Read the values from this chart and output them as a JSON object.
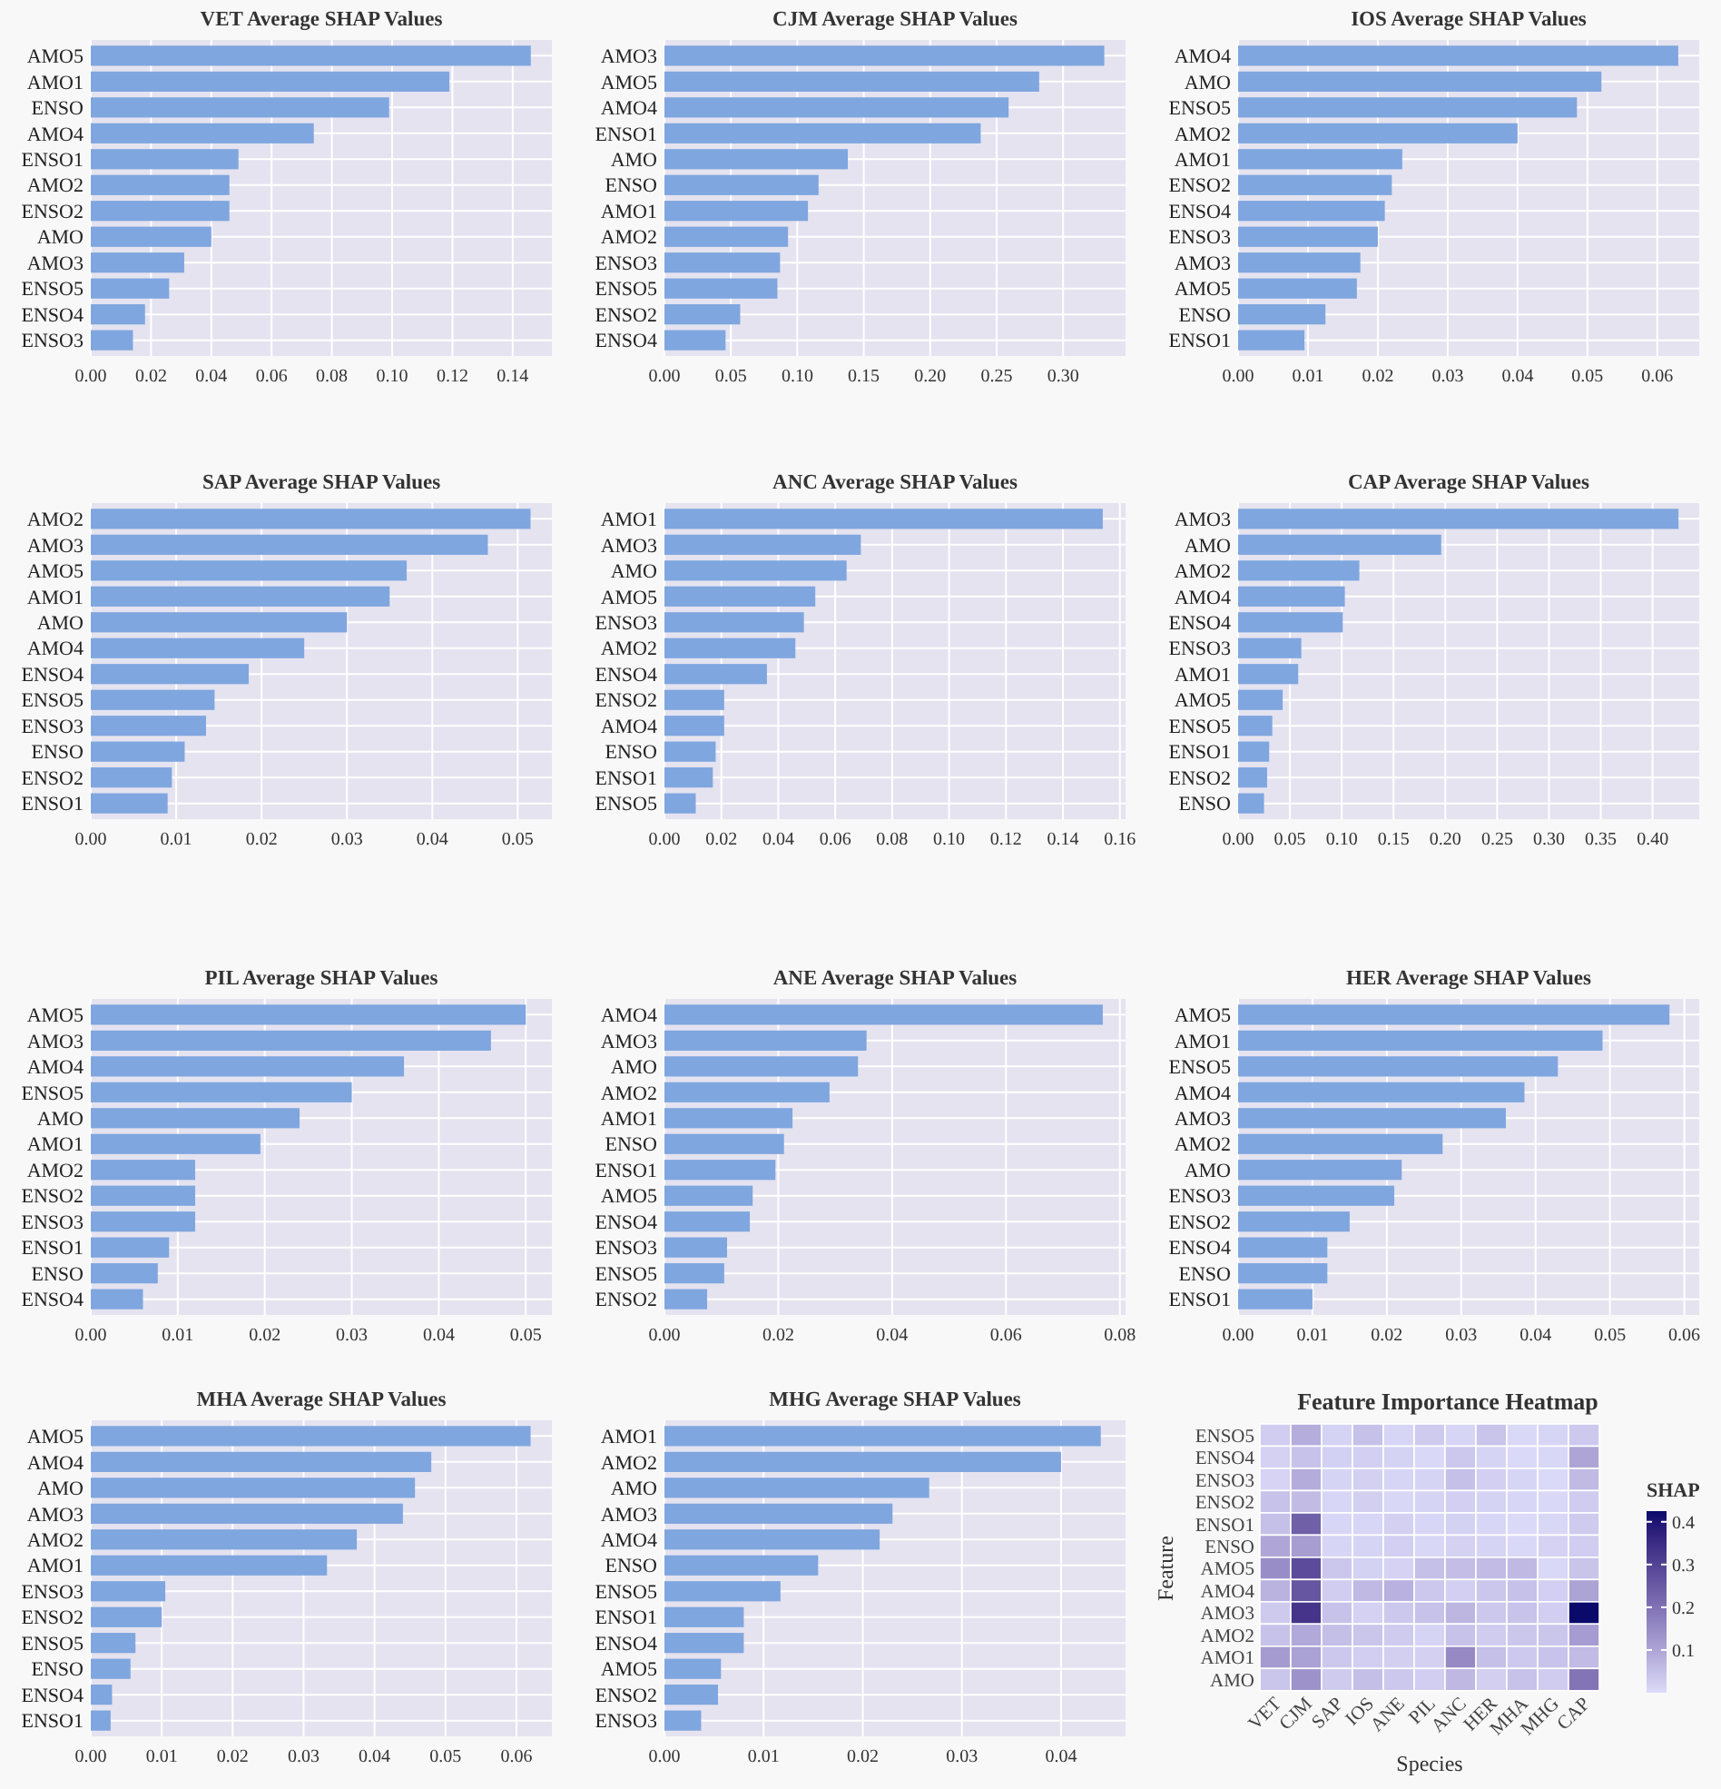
{
  "chart_data": [
    {
      "type": "bar",
      "orientation": "horizontal",
      "title": "VET Average SHAP Values",
      "grid": true,
      "color": "#7fa6df",
      "categories": [
        "AMO5",
        "AMO1",
        "ENSO",
        "AMO4",
        "ENSO1",
        "AMO2",
        "ENSO2",
        "AMO",
        "AMO3",
        "ENSO5",
        "ENSO4",
        "ENSO3"
      ],
      "values": [
        0.146,
        0.119,
        0.099,
        0.074,
        0.049,
        0.046,
        0.046,
        0.04,
        0.031,
        0.026,
        0.018,
        0.014
      ],
      "xlim": [
        0,
        0.153
      ],
      "xticks": [
        {
          "value": 0,
          "label": "0.00"
        },
        {
          "value": 0.02,
          "label": "0.02"
        },
        {
          "value": 0.04,
          "label": "0.04"
        },
        {
          "value": 0.06,
          "label": "0.06"
        },
        {
          "value": 0.08,
          "label": "0.08"
        },
        {
          "value": 0.1,
          "label": "0.10"
        },
        {
          "value": 0.12,
          "label": "0.12"
        },
        {
          "value": 0.14,
          "label": "0.14"
        }
      ]
    },
    {
      "type": "bar",
      "orientation": "horizontal",
      "title": "CJM Average SHAP Values",
      "grid": true,
      "color": "#7fa6df",
      "categories": [
        "AMO3",
        "AMO5",
        "AMO4",
        "ENSO1",
        "AMO",
        "ENSO",
        "AMO1",
        "AMO2",
        "ENSO3",
        "ENSO5",
        "ENSO2",
        "ENSO4"
      ],
      "values": [
        0.331,
        0.282,
        0.259,
        0.238,
        0.138,
        0.116,
        0.108,
        0.093,
        0.087,
        0.085,
        0.057,
        0.046
      ],
      "xlim": [
        0,
        0.347
      ],
      "xticks": [
        {
          "value": 0,
          "label": "0.00"
        },
        {
          "value": 0.05,
          "label": "0.05"
        },
        {
          "value": 0.1,
          "label": "0.10"
        },
        {
          "value": 0.15,
          "label": "0.15"
        },
        {
          "value": 0.2,
          "label": "0.20"
        },
        {
          "value": 0.25,
          "label": "0.25"
        },
        {
          "value": 0.3,
          "label": "0.30"
        }
      ]
    },
    {
      "type": "bar",
      "orientation": "horizontal",
      "title": "IOS Average SHAP Values",
      "grid": true,
      "color": "#7fa6df",
      "categories": [
        "AMO4",
        "AMO",
        "ENSO5",
        "AMO2",
        "AMO1",
        "ENSO2",
        "ENSO4",
        "ENSO3",
        "AMO3",
        "AMO5",
        "ENSO",
        "ENSO1"
      ],
      "values": [
        0.063,
        0.052,
        0.0485,
        0.04,
        0.0235,
        0.022,
        0.021,
        0.02,
        0.0175,
        0.017,
        0.0125,
        0.0095
      ],
      "xlim": [
        0,
        0.066
      ],
      "xticks": [
        {
          "value": 0,
          "label": "0.00"
        },
        {
          "value": 0.01,
          "label": "0.01"
        },
        {
          "value": 0.02,
          "label": "0.02"
        },
        {
          "value": 0.03,
          "label": "0.03"
        },
        {
          "value": 0.04,
          "label": "0.04"
        },
        {
          "value": 0.05,
          "label": "0.05"
        },
        {
          "value": 0.06,
          "label": "0.06"
        }
      ]
    },
    {
      "type": "bar",
      "orientation": "horizontal",
      "title": "SAP Average SHAP Values",
      "grid": true,
      "color": "#7fa6df",
      "categories": [
        "AMO2",
        "AMO3",
        "AMO5",
        "AMO1",
        "AMO",
        "AMO4",
        "ENSO4",
        "ENSO5",
        "ENSO3",
        "ENSO",
        "ENSO2",
        "ENSO1"
      ],
      "values": [
        0.0515,
        0.0465,
        0.037,
        0.035,
        0.03,
        0.025,
        0.0185,
        0.0145,
        0.0135,
        0.011,
        0.0095,
        0.009
      ],
      "xlim": [
        0,
        0.054
      ],
      "xticks": [
        {
          "value": 0,
          "label": "0.00"
        },
        {
          "value": 0.01,
          "label": "0.01"
        },
        {
          "value": 0.02,
          "label": "0.02"
        },
        {
          "value": 0.03,
          "label": "0.03"
        },
        {
          "value": 0.04,
          "label": "0.04"
        },
        {
          "value": 0.05,
          "label": "0.05"
        }
      ]
    },
    {
      "type": "bar",
      "orientation": "horizontal",
      "title": "ANC Average SHAP Values",
      "grid": true,
      "color": "#7fa6df",
      "categories": [
        "AMO1",
        "AMO3",
        "AMO",
        "AMO5",
        "ENSO3",
        "AMO2",
        "ENSO4",
        "ENSO2",
        "AMO4",
        "ENSO",
        "ENSO1",
        "ENSO5"
      ],
      "values": [
        0.154,
        0.069,
        0.064,
        0.053,
        0.049,
        0.046,
        0.036,
        0.021,
        0.021,
        0.018,
        0.017,
        0.011
      ],
      "xlim": [
        0,
        0.162
      ],
      "xticks": [
        {
          "value": 0,
          "label": "0.00"
        },
        {
          "value": 0.02,
          "label": "0.02"
        },
        {
          "value": 0.04,
          "label": "0.04"
        },
        {
          "value": 0.06,
          "label": "0.06"
        },
        {
          "value": 0.08,
          "label": "0.08"
        },
        {
          "value": 0.1,
          "label": "0.10"
        },
        {
          "value": 0.12,
          "label": "0.12"
        },
        {
          "value": 0.14,
          "label": "0.14"
        },
        {
          "value": 0.16,
          "label": "0.16"
        }
      ]
    },
    {
      "type": "bar",
      "orientation": "horizontal",
      "title": "CAP Average SHAP Values",
      "grid": true,
      "color": "#7fa6df",
      "categories": [
        "AMO3",
        "AMO",
        "AMO2",
        "AMO4",
        "ENSO4",
        "ENSO3",
        "AMO1",
        "AMO5",
        "ENSO5",
        "ENSO1",
        "ENSO2",
        "ENSO"
      ],
      "values": [
        0.425,
        0.196,
        0.117,
        0.103,
        0.101,
        0.061,
        0.058,
        0.043,
        0.033,
        0.03,
        0.028,
        0.025
      ],
      "xlim": [
        0,
        0.445
      ],
      "xticks": [
        {
          "value": 0,
          "label": "0.00"
        },
        {
          "value": 0.05,
          "label": "0.05"
        },
        {
          "value": 0.1,
          "label": "0.10"
        },
        {
          "value": 0.15,
          "label": "0.15"
        },
        {
          "value": 0.2,
          "label": "0.20"
        },
        {
          "value": 0.25,
          "label": "0.25"
        },
        {
          "value": 0.3,
          "label": "0.30"
        },
        {
          "value": 0.35,
          "label": "0.35"
        },
        {
          "value": 0.4,
          "label": "0.40"
        }
      ]
    },
    {
      "type": "bar",
      "orientation": "horizontal",
      "title": "PIL Average SHAP Values",
      "grid": true,
      "color": "#7fa6df",
      "categories": [
        "AMO5",
        "AMO3",
        "AMO4",
        "ENSO5",
        "AMO",
        "AMO1",
        "AMO2",
        "ENSO2",
        "ENSO3",
        "ENSO1",
        "ENSO",
        "ENSO4"
      ],
      "values": [
        0.05,
        0.046,
        0.036,
        0.03,
        0.024,
        0.0195,
        0.012,
        0.012,
        0.012,
        0.009,
        0.0077,
        0.006
      ],
      "xlim": [
        0,
        0.053
      ],
      "xticks": [
        {
          "value": 0,
          "label": "0.00"
        },
        {
          "value": 0.01,
          "label": "0.01"
        },
        {
          "value": 0.02,
          "label": "0.02"
        },
        {
          "value": 0.03,
          "label": "0.03"
        },
        {
          "value": 0.04,
          "label": "0.04"
        },
        {
          "value": 0.05,
          "label": "0.05"
        }
      ]
    },
    {
      "type": "bar",
      "orientation": "horizontal",
      "title": "ANE Average SHAP Values",
      "grid": true,
      "color": "#7fa6df",
      "categories": [
        "AMO4",
        "AMO3",
        "AMO",
        "AMO2",
        "AMO1",
        "ENSO",
        "ENSO1",
        "AMO5",
        "ENSO4",
        "ENSO3",
        "ENSO5",
        "ENSO2"
      ],
      "values": [
        0.077,
        0.0355,
        0.034,
        0.029,
        0.0225,
        0.021,
        0.0195,
        0.0155,
        0.015,
        0.011,
        0.0105,
        0.0075
      ],
      "xlim": [
        0,
        0.081
      ],
      "xticks": [
        {
          "value": 0,
          "label": "0.00"
        },
        {
          "value": 0.02,
          "label": "0.02"
        },
        {
          "value": 0.04,
          "label": "0.04"
        },
        {
          "value": 0.06,
          "label": "0.06"
        },
        {
          "value": 0.08,
          "label": "0.08"
        }
      ]
    },
    {
      "type": "bar",
      "orientation": "horizontal",
      "title": "HER Average SHAP Values",
      "grid": true,
      "color": "#7fa6df",
      "categories": [
        "AMO5",
        "AMO1",
        "ENSO5",
        "AMO4",
        "AMO3",
        "AMO2",
        "AMO",
        "ENSO3",
        "ENSO2",
        "ENSO4",
        "ENSO",
        "ENSO1"
      ],
      "values": [
        0.058,
        0.049,
        0.043,
        0.0385,
        0.036,
        0.0275,
        0.022,
        0.021,
        0.015,
        0.012,
        0.012,
        0.01
      ],
      "xlim": [
        0,
        0.062
      ],
      "xticks": [
        {
          "value": 0,
          "label": "0.00"
        },
        {
          "value": 0.01,
          "label": "0.01"
        },
        {
          "value": 0.02,
          "label": "0.02"
        },
        {
          "value": 0.03,
          "label": "0.03"
        },
        {
          "value": 0.04,
          "label": "0.04"
        },
        {
          "value": 0.05,
          "label": "0.05"
        },
        {
          "value": 0.06,
          "label": "0.06"
        }
      ]
    },
    {
      "type": "bar",
      "orientation": "horizontal",
      "title": "MHA Average SHAP Values",
      "grid": true,
      "color": "#7fa6df",
      "categories": [
        "AMO5",
        "AMO4",
        "AMO",
        "AMO3",
        "AMO2",
        "AMO1",
        "ENSO3",
        "ENSO2",
        "ENSO5",
        "ENSO",
        "ENSO4",
        "ENSO1"
      ],
      "values": [
        0.062,
        0.048,
        0.0457,
        0.044,
        0.0375,
        0.0333,
        0.0105,
        0.01,
        0.0063,
        0.0056,
        0.003,
        0.0028
      ],
      "xlim": [
        0,
        0.065
      ],
      "xticks": [
        {
          "value": 0,
          "label": "0.00"
        },
        {
          "value": 0.01,
          "label": "0.01"
        },
        {
          "value": 0.02,
          "label": "0.02"
        },
        {
          "value": 0.03,
          "label": "0.03"
        },
        {
          "value": 0.04,
          "label": "0.04"
        },
        {
          "value": 0.05,
          "label": "0.05"
        },
        {
          "value": 0.06,
          "label": "0.06"
        }
      ]
    },
    {
      "type": "bar",
      "orientation": "horizontal",
      "title": "MHG Average SHAP Values",
      "grid": true,
      "color": "#7fa6df",
      "categories": [
        "AMO1",
        "AMO2",
        "AMO",
        "AMO3",
        "AMO4",
        "ENSO",
        "ENSO5",
        "ENSO1",
        "ENSO4",
        "AMO5",
        "ENSO2",
        "ENSO3"
      ],
      "values": [
        0.044,
        0.04,
        0.0267,
        0.023,
        0.0217,
        0.0155,
        0.0117,
        0.008,
        0.008,
        0.0057,
        0.0054,
        0.0037
      ],
      "xlim": [
        0,
        0.0465
      ],
      "xticks": [
        {
          "value": 0,
          "label": "0.00"
        },
        {
          "value": 0.01,
          "label": "0.01"
        },
        {
          "value": 0.02,
          "label": "0.02"
        },
        {
          "value": 0.03,
          "label": "0.03"
        },
        {
          "value": 0.04,
          "label": "0.04"
        }
      ]
    },
    {
      "type": "heatmap",
      "title": "Feature Importance Heatmap",
      "xlabel": "Species",
      "ylabel": "Feature",
      "clabel": "SHAP",
      "categories": [
        "VET",
        "CJM",
        "SAP",
        "IOS",
        "ANE",
        "PIL",
        "ANC",
        "HER",
        "MHA",
        "MHG",
        "CAP"
      ],
      "y_categories": [
        "ENSO5",
        "ENSO4",
        "ENSO3",
        "ENSO2",
        "ENSO1",
        "ENSO",
        "AMO5",
        "AMO4",
        "AMO3",
        "AMO2",
        "AMO1",
        "AMO"
      ],
      "clim": [
        0,
        0.425
      ],
      "cticks": [
        0.1,
        0.2,
        0.3,
        0.4
      ],
      "cells": [
        [
          0.026,
          0.085,
          0.0145,
          0.0485,
          0.0105,
          0.03,
          0.011,
          0.043,
          0.0063,
          0.0117,
          0.033
        ],
        [
          0.018,
          0.046,
          0.0185,
          0.021,
          0.015,
          0.006,
          0.036,
          0.012,
          0.003,
          0.008,
          0.101
        ],
        [
          0.014,
          0.087,
          0.0135,
          0.02,
          0.011,
          0.012,
          0.049,
          0.021,
          0.0105,
          0.0037,
          0.061
        ],
        [
          0.046,
          0.057,
          0.0095,
          0.022,
          0.0075,
          0.012,
          0.021,
          0.015,
          0.01,
          0.0054,
          0.028
        ],
        [
          0.049,
          0.238,
          0.009,
          0.0095,
          0.0195,
          0.009,
          0.017,
          0.01,
          0.0028,
          0.008,
          0.03
        ],
        [
          0.099,
          0.116,
          0.011,
          0.0125,
          0.021,
          0.0077,
          0.018,
          0.012,
          0.0056,
          0.0155,
          0.025
        ],
        [
          0.146,
          0.282,
          0.037,
          0.017,
          0.0155,
          0.05,
          0.053,
          0.058,
          0.062,
          0.0057,
          0.043
        ],
        [
          0.074,
          0.259,
          0.025,
          0.063,
          0.077,
          0.036,
          0.021,
          0.0385,
          0.048,
          0.0217,
          0.103
        ],
        [
          0.031,
          0.331,
          0.0465,
          0.0175,
          0.0355,
          0.046,
          0.069,
          0.036,
          0.044,
          0.023,
          0.425
        ],
        [
          0.046,
          0.093,
          0.0515,
          0.04,
          0.029,
          0.012,
          0.046,
          0.0275,
          0.0375,
          0.04,
          0.117
        ],
        [
          0.119,
          0.108,
          0.035,
          0.0235,
          0.0225,
          0.0195,
          0.154,
          0.049,
          0.0333,
          0.044,
          0.058
        ],
        [
          0.04,
          0.138,
          0.03,
          0.052,
          0.034,
          0.024,
          0.064,
          0.022,
          0.0457,
          0.0267,
          0.196
        ]
      ]
    }
  ]
}
